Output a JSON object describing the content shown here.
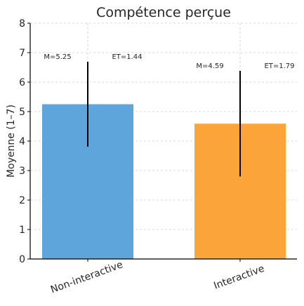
{
  "chart_data": {
    "type": "bar",
    "title": "Compétence perçue",
    "xlabel": "",
    "ylabel": "Moyenne (1–7)",
    "ylim": [
      0,
      8
    ],
    "yticks": [
      "0",
      "1",
      "2",
      "3",
      "4",
      "5",
      "6",
      "7",
      "8"
    ],
    "grid": true,
    "categories": [
      "Non-interactive",
      "Interactive"
    ],
    "values": [
      5.25,
      4.59
    ],
    "errors": [
      1.44,
      1.79
    ],
    "colors": [
      "#5da5da",
      "#faa43a"
    ],
    "mean_labels": [
      "M=5.25",
      "M=4.59"
    ],
    "sd_labels": [
      "ET=1.44",
      "ET=1.79"
    ]
  }
}
